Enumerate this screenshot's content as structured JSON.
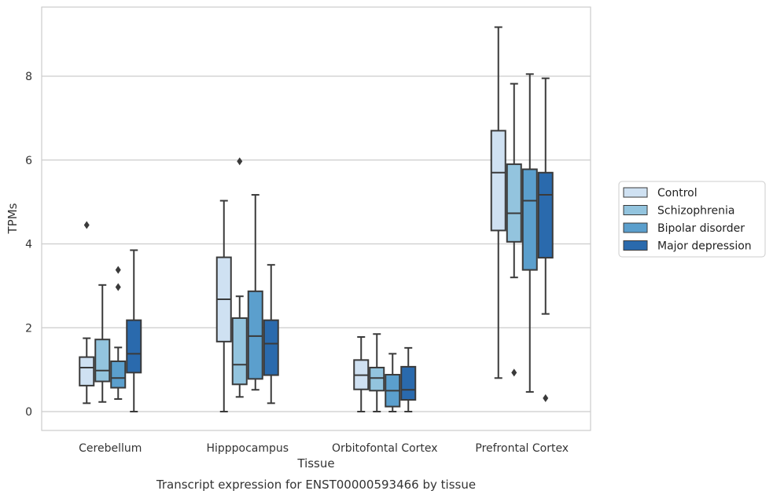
{
  "chart_data": {
    "type": "box",
    "xlabel": "Tissue",
    "ylabel": "TPMs",
    "caption": "Transcript expression for ENST00000593466 by tissue",
    "categories": [
      "Cerebellum",
      "Hipppocampus",
      "Orbitofontal Cortex",
      "Prefrontal Cortex"
    ],
    "ylim": [
      -0.45,
      9.65
    ],
    "yticks": [
      0,
      2,
      4,
      6,
      8
    ],
    "grid": "horizontal",
    "legend_position": "right",
    "series": [
      {
        "name": "Control",
        "color": "#cfe1f2",
        "boxes": [
          {
            "whislo": 0.2,
            "q1": 0.62,
            "med": 1.05,
            "q3": 1.3,
            "whishi": 1.75,
            "fliers": [
              4.45
            ]
          },
          {
            "whislo": 0.0,
            "q1": 1.67,
            "med": 2.68,
            "q3": 3.68,
            "whishi": 5.03,
            "fliers": []
          },
          {
            "whislo": 0.0,
            "q1": 0.53,
            "med": 0.87,
            "q3": 1.23,
            "whishi": 1.78,
            "fliers": []
          },
          {
            "whislo": 0.8,
            "q1": 4.32,
            "med": 5.7,
            "q3": 6.7,
            "whishi": 9.17,
            "fliers": []
          }
        ]
      },
      {
        "name": "Schizophrenia",
        "color": "#93c4de",
        "boxes": [
          {
            "whislo": 0.23,
            "q1": 0.72,
            "med": 0.98,
            "q3": 1.72,
            "whishi": 3.02,
            "fliers": []
          },
          {
            "whislo": 0.35,
            "q1": 0.65,
            "med": 1.12,
            "q3": 2.23,
            "whishi": 2.75,
            "fliers": [
              5.97
            ]
          },
          {
            "whislo": 0.0,
            "q1": 0.5,
            "med": 0.8,
            "q3": 1.05,
            "whishi": 1.85,
            "fliers": []
          },
          {
            "whislo": 3.2,
            "q1": 4.05,
            "med": 4.73,
            "q3": 5.9,
            "whishi": 7.82,
            "fliers": [
              0.93
            ]
          }
        ]
      },
      {
        "name": "Bipolar disorder",
        "color": "#5b9fcd",
        "boxes": [
          {
            "whislo": 0.3,
            "q1": 0.57,
            "med": 0.8,
            "q3": 1.2,
            "whishi": 1.53,
            "fliers": [
              2.97,
              3.38
            ]
          },
          {
            "whislo": 0.52,
            "q1": 0.78,
            "med": 1.8,
            "q3": 2.87,
            "whishi": 5.17,
            "fliers": []
          },
          {
            "whislo": 0.0,
            "q1": 0.12,
            "med": 0.5,
            "q3": 0.88,
            "whishi": 1.38,
            "fliers": []
          },
          {
            "whislo": 0.47,
            "q1": 3.38,
            "med": 5.03,
            "q3": 5.78,
            "whishi": 8.05,
            "fliers": []
          }
        ]
      },
      {
        "name": "Major depression",
        "color": "#2a6aad",
        "boxes": [
          {
            "whislo": 0.0,
            "q1": 0.93,
            "med": 1.38,
            "q3": 2.18,
            "whishi": 3.85,
            "fliers": []
          },
          {
            "whislo": 0.2,
            "q1": 0.87,
            "med": 1.62,
            "q3": 2.18,
            "whishi": 3.5,
            "fliers": []
          },
          {
            "whislo": 0.0,
            "q1": 0.28,
            "med": 0.52,
            "q3": 1.07,
            "whishi": 1.52,
            "fliers": []
          },
          {
            "whislo": 2.33,
            "q1": 3.67,
            "med": 5.17,
            "q3": 5.7,
            "whishi": 7.95,
            "fliers": [
              0.32
            ]
          }
        ]
      }
    ]
  }
}
